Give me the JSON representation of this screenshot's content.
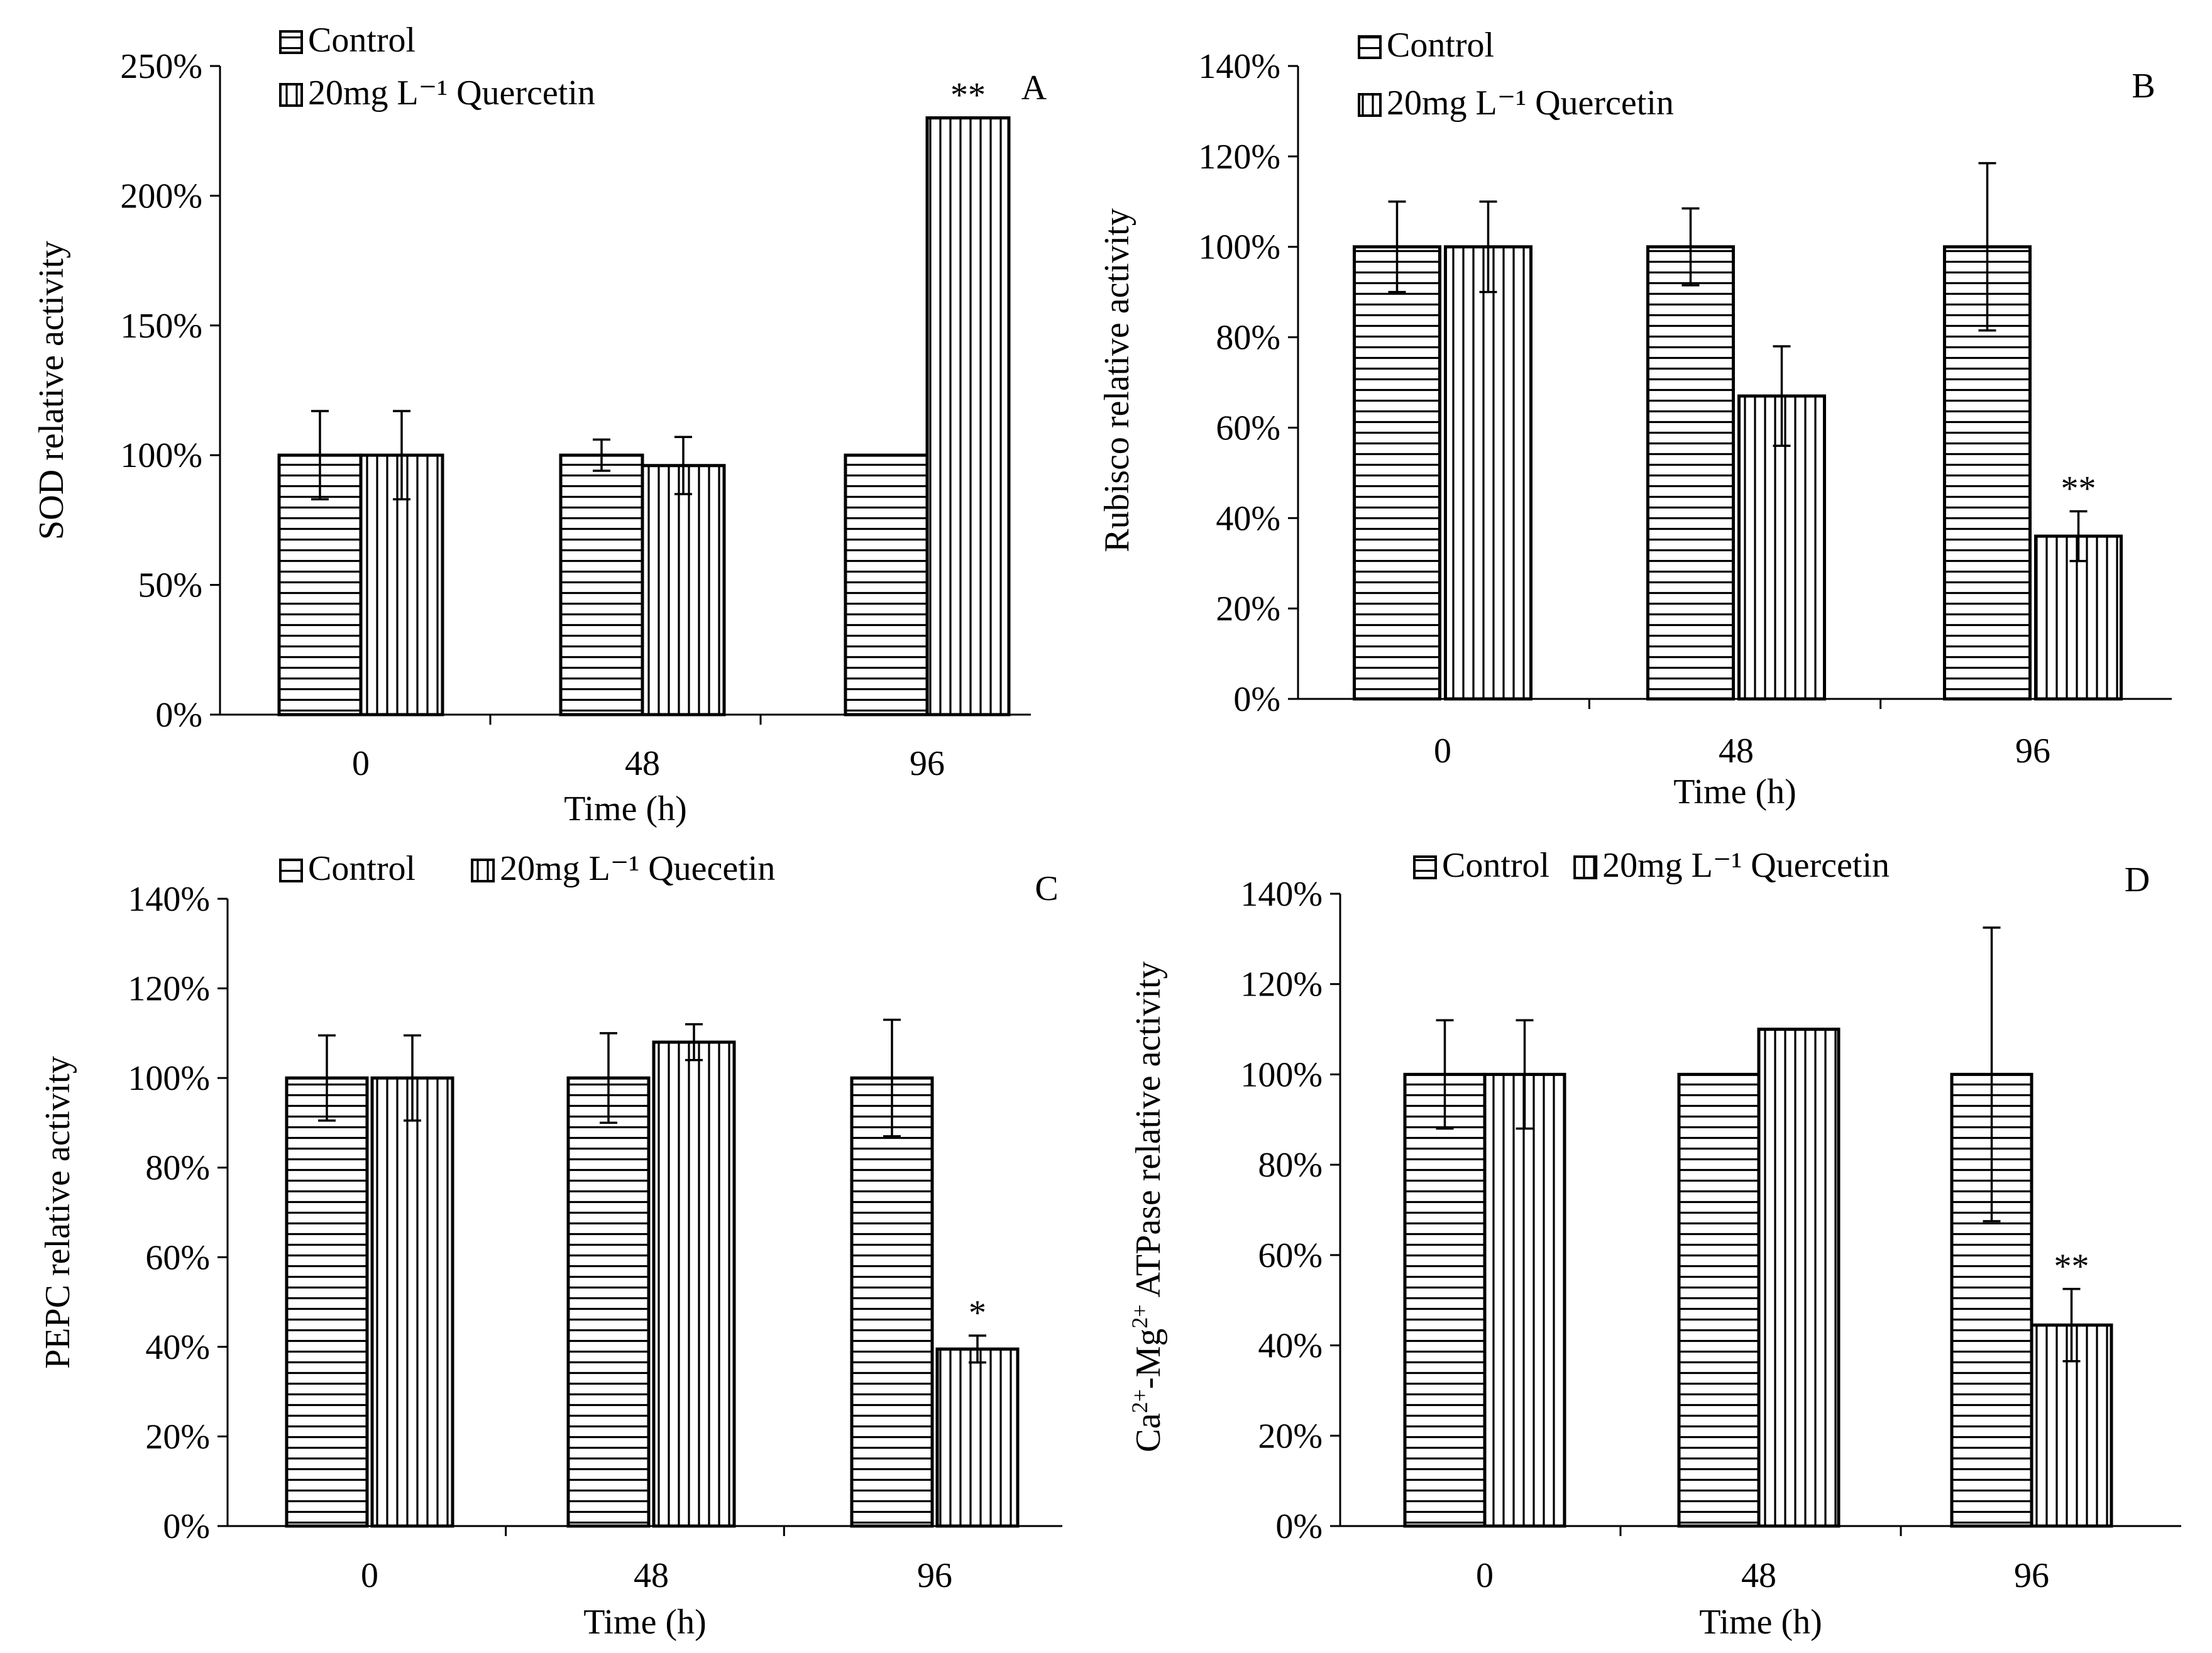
{
  "colors": {
    "ink": "#000000",
    "fill": "#ffffff"
  },
  "chart_data": [
    {
      "type": "bar",
      "panel_label": "A",
      "ylabel": "SOD relative activity",
      "xlabel": "Time (h)",
      "categories": [
        "0",
        "48",
        "96"
      ],
      "ylim": [
        0,
        2.5
      ],
      "ytick_values": [
        0,
        0.5,
        1.0,
        1.5,
        2.0,
        2.5
      ],
      "ytick_labels": [
        "0%",
        "50%",
        "100%",
        "150%",
        "200%",
        "250%"
      ],
      "legend_layout": "stacked-top-left",
      "series": [
        {
          "name": "Control",
          "pattern": "horizontal",
          "values": [
            1.0,
            1.0,
            1.0
          ],
          "errors": [
            0.17,
            0.06,
            0
          ]
        },
        {
          "name": "20mg L⁻¹ Quercetin",
          "pattern": "vertical",
          "values": [
            1.0,
            0.96,
            2.3
          ],
          "errors": [
            0.17,
            0.11,
            0
          ]
        }
      ],
      "annotations": [
        {
          "series": 1,
          "category": 2,
          "text": "**"
        }
      ]
    },
    {
      "type": "bar",
      "panel_label": "B",
      "ylabel": "Rubisco relative activity",
      "xlabel": "Time (h)",
      "categories": [
        "0",
        "48",
        "96"
      ],
      "ylim": [
        0,
        1.4
      ],
      "ytick_values": [
        0,
        0.2,
        0.4,
        0.6,
        0.8,
        1.0,
        1.2,
        1.4
      ],
      "ytick_labels": [
        "0%",
        "20%",
        "40%",
        "60%",
        "80%",
        "100%",
        "120%",
        "140%"
      ],
      "legend_layout": "stacked-top-left",
      "series": [
        {
          "name": "Control",
          "pattern": "horizontal",
          "values": [
            1.0,
            1.0,
            1.0
          ],
          "errors": [
            0.1,
            0.085,
            0.185
          ]
        },
        {
          "name": "20mg L⁻¹ Quercetin",
          "pattern": "vertical",
          "values": [
            1.0,
            0.67,
            0.36
          ],
          "errors": [
            0.1,
            0.11,
            0.055
          ]
        }
      ],
      "annotations": [
        {
          "series": 1,
          "category": 2,
          "text": "**"
        }
      ]
    },
    {
      "type": "bar",
      "panel_label": "C",
      "ylabel": "PEPC relative activity",
      "xlabel": "Time (h)",
      "categories": [
        "0",
        "48",
        "96"
      ],
      "ylim": [
        0,
        1.4
      ],
      "ytick_values": [
        0,
        0.2,
        0.4,
        0.6,
        0.8,
        1.0,
        1.2,
        1.4
      ],
      "ytick_labels": [
        "0%",
        "20%",
        "40%",
        "60%",
        "80%",
        "100%",
        "120%",
        "140%"
      ],
      "legend_layout": "inline-top-left",
      "series": [
        {
          "name": "Control",
          "pattern": "horizontal",
          "values": [
            1.0,
            1.0,
            1.0
          ],
          "errors": [
            0.095,
            0.1,
            0.13
          ]
        },
        {
          "name": "20mg L⁻¹ Quecetin",
          "pattern": "vertical",
          "values": [
            1.0,
            1.08,
            0.395
          ],
          "errors": [
            0.095,
            0.04,
            0.03
          ]
        }
      ],
      "annotations": [
        {
          "series": 1,
          "category": 2,
          "text": "*"
        }
      ]
    },
    {
      "type": "bar",
      "panel_label": "D",
      "ylabel_parts": [
        "Ca",
        "2+",
        "-Mg",
        "2+",
        " ATPase  relative activity"
      ],
      "xlabel": "Time (h)",
      "categories": [
        "0",
        "48",
        "96"
      ],
      "ylim": [
        0,
        1.4
      ],
      "ytick_values": [
        0,
        0.2,
        0.4,
        0.6,
        0.8,
        1.0,
        1.2,
        1.4
      ],
      "ytick_labels": [
        "0%",
        "20%",
        "40%",
        "60%",
        "80%",
        "100%",
        "120%",
        "140%"
      ],
      "legend_layout": "inline-top-left",
      "series": [
        {
          "name": "Control",
          "pattern": "horizontal",
          "values": [
            1.0,
            1.0,
            1.0
          ],
          "errors": [
            0.12,
            0,
            0.325
          ]
        },
        {
          "name": "20mg L⁻¹ Quercetin",
          "pattern": "vertical",
          "values": [
            1.0,
            1.1,
            0.445
          ],
          "errors": [
            0.12,
            0,
            0.08
          ]
        }
      ],
      "annotations": [
        {
          "series": 1,
          "category": 2,
          "text": "**"
        }
      ]
    }
  ]
}
